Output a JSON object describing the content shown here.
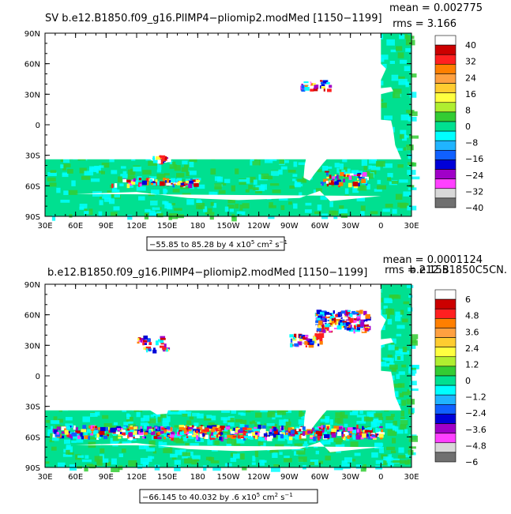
{
  "panels": [
    {
      "title": "SV b.e12.B1850.f09_g16.PlIMP4−pliomip2.modMed  [1150−1199]",
      "mean_text": "mean = 0.002775",
      "rms_text": "rms = 3.166",
      "range_text_main": "−55.85 to 85.28 by 4 x10",
      "range_text_exp": "5",
      "range_text_unit": " cm",
      "range_text_unit_exp": "2",
      "range_text_tail": " s",
      "range_text_tail_exp": "−1",
      "colorbar_labels": [
        "40",
        "32",
        "24",
        "16",
        "8",
        "0",
        "−8",
        "−16",
        "−24",
        "−32",
        "−40"
      ]
    },
    {
      "title": "b.e12.B1850.f09_g16.PlIMP4−pliomip2.modMed  [1150−1199]",
      "mean_text": "mean = 0.0001124",
      "rms_text": "rms = 2.155",
      "overlap_text": "b.e12.B1850C5CN.",
      "range_text_main": "−66.145 to 40.032 by .6 x10",
      "range_text_exp": "5",
      "range_text_unit": " cm",
      "range_text_unit_exp": "2",
      "range_text_tail": " s",
      "range_text_tail_exp": "−1",
      "colorbar_labels": [
        "6",
        "4.8",
        "3.6",
        "2.4",
        "1.2",
        "0",
        "−1.2",
        "−2.4",
        "−3.6",
        "−4.8",
        "−6"
      ]
    }
  ],
  "lat_labels": [
    "90N",
    "60N",
    "30N",
    "0",
    "30S",
    "60S",
    "90S"
  ],
  "lon_labels": [
    "30E",
    "60E",
    "90E",
    "120E",
    "150E",
    "180",
    "150W",
    "120W",
    "90W",
    "60W",
    "30W",
    "0",
    "30E"
  ],
  "colorbar_colors": [
    "#ffffff",
    "#cc0000",
    "#ff2020",
    "#ff7f00",
    "#ffa040",
    "#ffcc30",
    "#ffff40",
    "#b0ee30",
    "#33cc33",
    "#00e090",
    "#00ffff",
    "#20b4ff",
    "#1060ff",
    "#0000d8",
    "#a000c8",
    "#ff40ff",
    "#d8d8d8",
    "#707070"
  ],
  "map_colors": {
    "ocean_background": "#00e090",
    "land": "#ffffff"
  }
}
